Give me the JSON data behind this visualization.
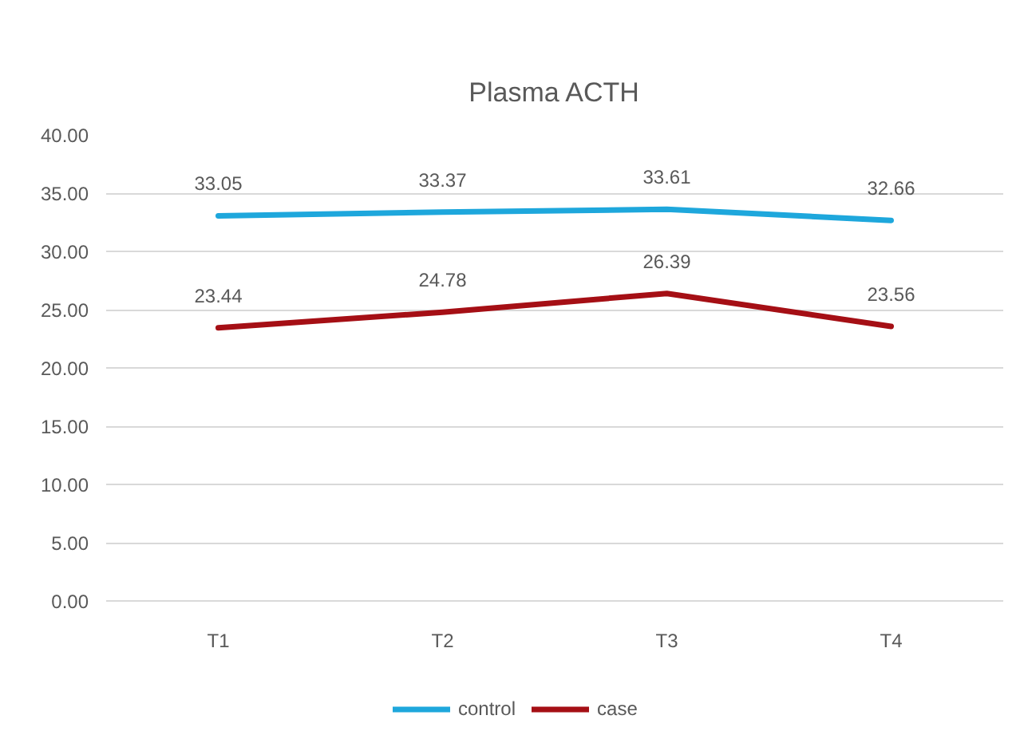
{
  "chart_data": {
    "type": "line",
    "title": "Plasma ACTH",
    "categories": [
      "T1",
      "T2",
      "T3",
      "T4"
    ],
    "series": [
      {
        "name": "control",
        "color": "#1ea7dc",
        "values": [
          33.05,
          33.37,
          33.61,
          32.66
        ]
      },
      {
        "name": "case",
        "color": "#a50f15",
        "values": [
          23.44,
          24.78,
          26.39,
          23.56
        ]
      }
    ],
    "ylim": [
      0,
      40
    ],
    "yticks": [
      {
        "value": 0,
        "label": "0.00"
      },
      {
        "value": 5,
        "label": "5.00"
      },
      {
        "value": 10,
        "label": "10.00"
      },
      {
        "value": 15,
        "label": "15.00"
      },
      {
        "value": 20,
        "label": "20.00"
      },
      {
        "value": 25,
        "label": "25.00"
      },
      {
        "value": 30,
        "label": "30.00"
      },
      {
        "value": 35,
        "label": "35.00"
      },
      {
        "value": 40,
        "label": "40.00"
      }
    ],
    "grid": "y",
    "legend": "bottom",
    "data_labels": true
  }
}
